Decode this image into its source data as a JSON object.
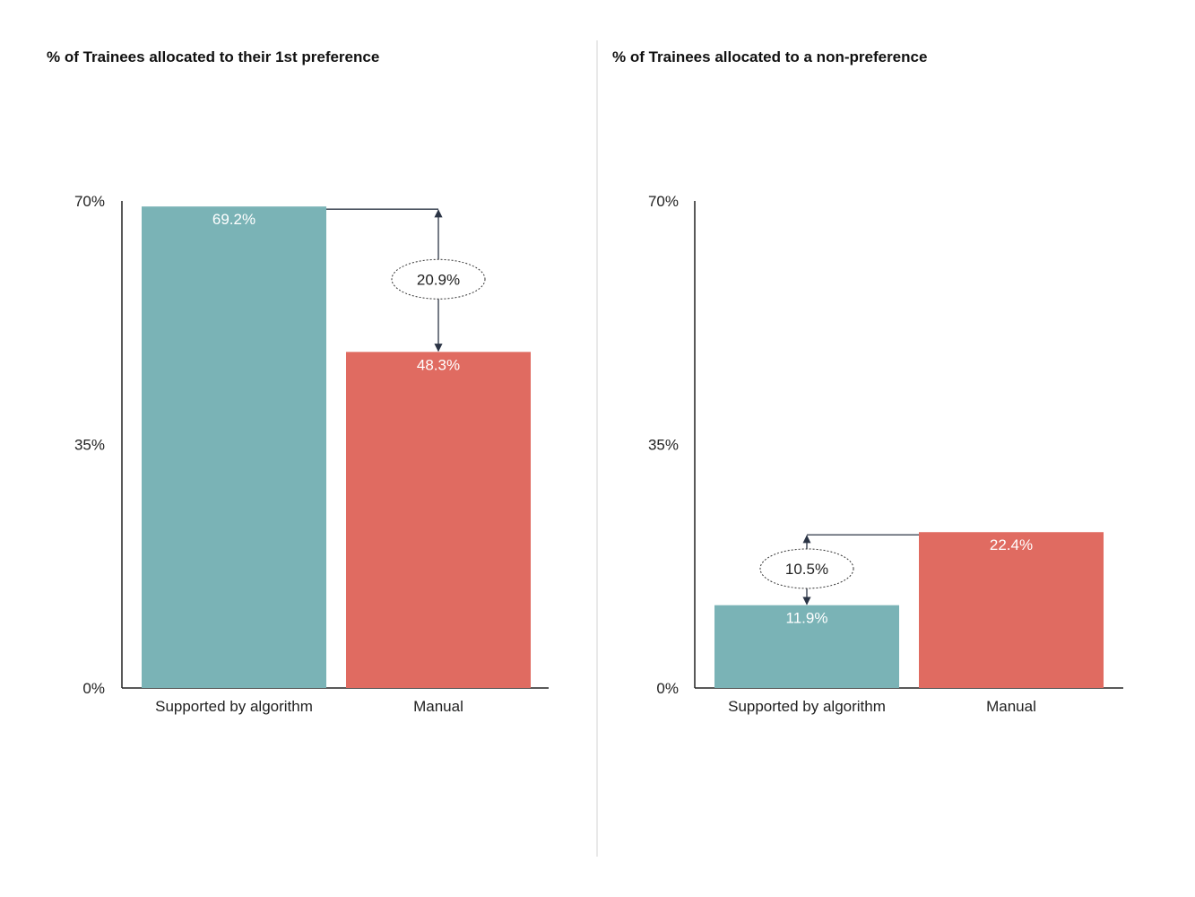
{
  "colors": {
    "algorithm": "#7AB3B6",
    "manual": "#E06B61",
    "axis": "#222222",
    "divider": "#E2E2E2",
    "annotation": "#2B3445"
  },
  "chart_data": [
    {
      "type": "bar",
      "title": "% of Trainees allocated to their 1st preference",
      "categories": [
        "Supported by algorithm",
        "Manual"
      ],
      "values": [
        69.2,
        48.3
      ],
      "value_labels": [
        "69.2%",
        "48.3%"
      ],
      "ylim": [
        0,
        70
      ],
      "yticks": [
        {
          "value": 0,
          "label": "0%"
        },
        {
          "value": 35,
          "label": "35%"
        },
        {
          "value": 70,
          "label": "70%"
        }
      ],
      "xlabel": "",
      "ylabel": "",
      "difference": {
        "label": "20.9%",
        "from_index": 0,
        "to_index": 1
      }
    },
    {
      "type": "bar",
      "title": "% of Trainees allocated to a non-preference",
      "categories": [
        "Supported by algorithm",
        "Manual"
      ],
      "values": [
        11.9,
        22.4
      ],
      "value_labels": [
        "11.9%",
        "22.4%"
      ],
      "ylim": [
        0,
        70
      ],
      "yticks": [
        {
          "value": 0,
          "label": "0%"
        },
        {
          "value": 35,
          "label": "35%"
        },
        {
          "value": 70,
          "label": "70%"
        }
      ],
      "xlabel": "",
      "ylabel": "",
      "difference": {
        "label": "10.5%",
        "from_index": 1,
        "to_index": 0
      }
    }
  ]
}
